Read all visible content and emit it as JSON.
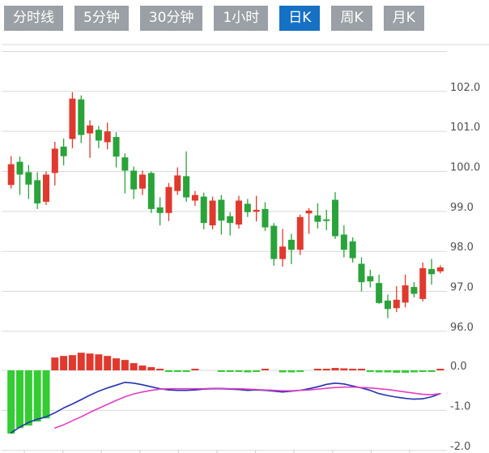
{
  "tab_bar": {
    "items": [
      {
        "name": "timeline",
        "label": "分时线",
        "active": false
      },
      {
        "name": "5min",
        "label": "5分钟",
        "active": false
      },
      {
        "name": "30min",
        "label": "30分钟",
        "active": false
      },
      {
        "name": "1hour",
        "label": "1小时",
        "active": false
      },
      {
        "name": "daily-k",
        "label": "日K",
        "active": true
      },
      {
        "name": "weekly-k",
        "label": "周K",
        "active": false
      },
      {
        "name": "monthly-k",
        "label": "月K",
        "active": false
      }
    ]
  },
  "colors": {
    "up": "#e0392e",
    "down": "#2aa33a",
    "hist_up": "#e0392e",
    "hist_down": "#33cc33",
    "dif_line": "#2233b0",
    "dea_line": "#e13ec2",
    "grid": "#d9d9d9",
    "axis_line": "#c9c9c9",
    "axis_text": "#4f4f4f",
    "tab_active_bg": "#1670c4",
    "tab_inactive_bg": "#9aa0a5",
    "tab_text": "#ffffff"
  },
  "chart_data": {
    "type": "candlestick",
    "title": "",
    "convention": "red=up green=down",
    "panels": [
      {
        "name": "price",
        "grid": true,
        "legend": "none",
        "y_ticks": [
          {
            "value": 103.0,
            "label": ""
          },
          {
            "value": 102.0,
            "label": "102.0"
          },
          {
            "value": 101.0,
            "label": "101.0"
          },
          {
            "value": 100.0,
            "label": "100.0"
          },
          {
            "value": 99.0,
            "label": "99.0"
          },
          {
            "value": 98.0,
            "label": "98.0"
          },
          {
            "value": 97.0,
            "label": "97.0"
          },
          {
            "value": 96.0,
            "label": "96.0"
          }
        ],
        "y_range": [
          95.8,
          103.0
        ]
      },
      {
        "name": "macd",
        "grid": true,
        "y_ticks": [
          {
            "value": 0.0,
            "label": "0.0"
          },
          {
            "value": -1.0,
            "label": "-1.0"
          },
          {
            "value": -2.0,
            "label": "-2.0"
          }
        ],
        "y_range": [
          -2.0,
          0.1
        ]
      }
    ],
    "candles_ohlc": [
      [
        99.66,
        100.38,
        99.57,
        100.18
      ],
      [
        100.24,
        100.37,
        99.41,
        99.92
      ],
      [
        99.98,
        100.16,
        99.31,
        99.67
      ],
      [
        99.78,
        99.98,
        99.06,
        99.2
      ],
      [
        99.24,
        100.0,
        99.16,
        99.92
      ],
      [
        99.96,
        100.74,
        99.65,
        100.57
      ],
      [
        100.62,
        100.82,
        100.15,
        100.38
      ],
      [
        100.81,
        101.98,
        100.58,
        101.82
      ],
      [
        101.8,
        101.9,
        100.71,
        100.91
      ],
      [
        100.95,
        101.28,
        100.34,
        101.15
      ],
      [
        101.04,
        101.14,
        100.58,
        100.77
      ],
      [
        100.73,
        101.22,
        100.55,
        101.0
      ],
      [
        100.86,
        100.98,
        100.1,
        100.37
      ],
      [
        100.35,
        100.45,
        99.45,
        100.02
      ],
      [
        100.02,
        100.12,
        99.31,
        99.55
      ],
      [
        99.57,
        100.02,
        99.41,
        99.92
      ],
      [
        99.96,
        100.0,
        98.96,
        99.06
      ],
      [
        99.1,
        99.35,
        98.65,
        98.96
      ],
      [
        98.96,
        99.71,
        98.76,
        99.61
      ],
      [
        99.51,
        100.1,
        99.41,
        99.9
      ],
      [
        99.88,
        100.5,
        99.24,
        99.35
      ],
      [
        99.27,
        99.51,
        99.14,
        99.41
      ],
      [
        99.37,
        99.47,
        98.55,
        98.71
      ],
      [
        98.65,
        99.37,
        98.55,
        99.27
      ],
      [
        99.29,
        99.41,
        98.42,
        98.77
      ],
      [
        98.88,
        98.98,
        98.4,
        98.71
      ],
      [
        98.67,
        99.39,
        98.57,
        99.27
      ],
      [
        99.19,
        99.31,
        98.86,
        98.98
      ],
      [
        98.99,
        99.39,
        98.75,
        99.04
      ],
      [
        99.06,
        99.23,
        98.51,
        98.6
      ],
      [
        98.64,
        98.71,
        97.64,
        97.81
      ],
      [
        97.81,
        98.56,
        97.62,
        98.12
      ],
      [
        98.29,
        98.44,
        97.68,
        98.04
      ],
      [
        98.04,
        98.92,
        97.91,
        98.86
      ],
      [
        98.95,
        99.08,
        98.44,
        99.02
      ],
      [
        98.9,
        99.2,
        98.57,
        98.74
      ],
      [
        98.8,
        99.04,
        98.53,
        98.76
      ],
      [
        99.29,
        99.48,
        98.31,
        98.38
      ],
      [
        98.42,
        98.65,
        97.85,
        98.04
      ],
      [
        98.25,
        98.35,
        97.72,
        97.83
      ],
      [
        97.69,
        97.85,
        97.0,
        97.23
      ],
      [
        97.38,
        97.54,
        97.1,
        97.25
      ],
      [
        97.21,
        97.42,
        96.69,
        96.71
      ],
      [
        96.77,
        96.92,
        96.33,
        96.56
      ],
      [
        96.58,
        97.13,
        96.48,
        96.79
      ],
      [
        96.72,
        97.42,
        96.6,
        97.15
      ],
      [
        97.11,
        97.23,
        96.85,
        96.94
      ],
      [
        96.81,
        97.72,
        96.75,
        97.58
      ],
      [
        97.56,
        97.81,
        97.17,
        97.43
      ],
      [
        97.5,
        97.65,
        97.45,
        97.6
      ]
    ],
    "macd_histogram": [
      -1.58,
      -1.44,
      -1.38,
      -1.28,
      -1.2,
      0.32,
      0.36,
      0.38,
      0.44,
      0.42,
      0.4,
      0.36,
      0.3,
      0.26,
      0.18,
      0.12,
      0.08,
      0.02,
      -0.02,
      -0.03,
      -0.03,
      0.02,
      0.0,
      0.0,
      -0.04,
      -0.04,
      -0.03,
      -0.05,
      -0.03,
      0.02,
      0.0,
      -0.05,
      -0.05,
      -0.04,
      0.0,
      0.02,
      0.03,
      0.06,
      0.05,
      0.02,
      0.01,
      -0.03,
      -0.05,
      -0.05,
      -0.06,
      -0.06,
      -0.05,
      -0.04,
      -0.02,
      0.02
    ],
    "dif_line": [
      -1.56,
      -1.42,
      -1.3,
      -1.22,
      -1.16,
      -1.06,
      -0.94,
      -0.84,
      -0.73,
      -0.62,
      -0.52,
      -0.44,
      -0.37,
      -0.3,
      -0.32,
      -0.36,
      -0.41,
      -0.46,
      -0.49,
      -0.5,
      -0.5,
      -0.49,
      -0.47,
      -0.46,
      -0.46,
      -0.47,
      -0.48,
      -0.5,
      -0.49,
      -0.5,
      -0.52,
      -0.54,
      -0.52,
      -0.5,
      -0.46,
      -0.41,
      -0.35,
      -0.32,
      -0.34,
      -0.39,
      -0.44,
      -0.5,
      -0.58,
      -0.63,
      -0.67,
      -0.7,
      -0.72,
      -0.71,
      -0.66,
      -0.58
    ],
    "dea_line": [
      null,
      null,
      null,
      null,
      null,
      -1.44,
      -1.36,
      -1.26,
      -1.16,
      -1.05,
      -0.95,
      -0.85,
      -0.75,
      -0.66,
      -0.59,
      -0.54,
      -0.5,
      -0.47,
      -0.46,
      -0.46,
      -0.46,
      -0.46,
      -0.46,
      -0.45,
      -0.45,
      -0.46,
      -0.46,
      -0.47,
      -0.48,
      -0.49,
      -0.5,
      -0.51,
      -0.51,
      -0.5,
      -0.49,
      -0.47,
      -0.45,
      -0.43,
      -0.42,
      -0.42,
      -0.43,
      -0.44,
      -0.46,
      -0.48,
      -0.51,
      -0.54,
      -0.57,
      -0.6,
      -0.61,
      -0.58
    ]
  }
}
